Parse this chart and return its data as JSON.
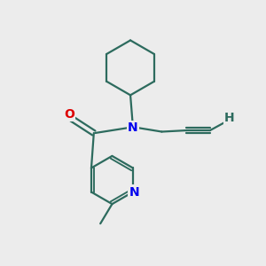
{
  "bg_color": "#ececec",
  "bond_color": "#2d6b5e",
  "N_color": "#0000ee",
  "O_color": "#dd0000",
  "H_color": "#2d6b5e",
  "line_width": 1.6,
  "fig_size": [
    3.0,
    3.0
  ],
  "dpi": 100,
  "xlim": [
    0,
    10
  ],
  "ylim": [
    0,
    10
  ]
}
